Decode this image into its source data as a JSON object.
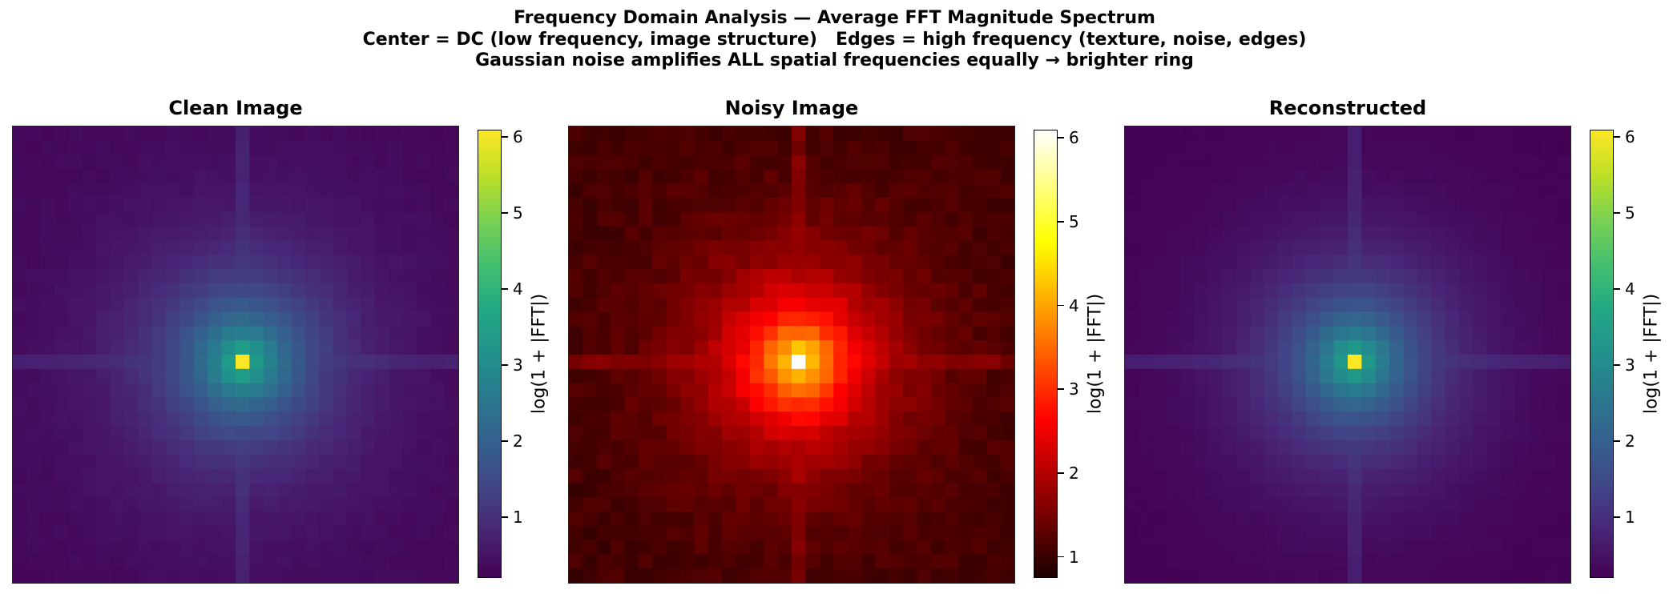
{
  "title_lines": [
    "Frequency Domain Analysis — Average FFT Magnitude Spectrum",
    "Center = DC (low frequency, image structure)   Edges = high frequency (texture, noise, edges)",
    "Gaussian noise amplifies ALL spatial frequencies equally → brighter ring"
  ],
  "chart_data": [
    {
      "type": "heatmap",
      "title": "Clean Image",
      "grid_size": 32,
      "center_index": 16,
      "colormap": "viridis",
      "value_range": [
        0.2,
        6.1
      ],
      "dc_value": 6.1,
      "near_dc_value": 3.4,
      "edge_value": 0.3,
      "axis_line_value": 1.25,
      "noise": 0.04,
      "colorbar": {
        "label": "log(1 + |FFT|)",
        "ticks": [
          1,
          2,
          3,
          4,
          5,
          6
        ]
      }
    },
    {
      "type": "heatmap",
      "title": "Noisy Image",
      "grid_size": 32,
      "center_index": 16,
      "colormap": "hot",
      "value_range": [
        0.75,
        6.1
      ],
      "dc_value": 6.1,
      "near_dc_value": 4.2,
      "edge_value": 1.05,
      "axis_line_value": 2.05,
      "noise": 0.12,
      "colorbar": {
        "label": "log(1 + |FFT|)",
        "ticks": [
          1,
          2,
          3,
          4,
          5,
          6
        ]
      }
    },
    {
      "type": "heatmap",
      "title": "Reconstructed",
      "grid_size": 32,
      "center_index": 16,
      "colormap": "viridis",
      "value_range": [
        0.2,
        6.1
      ],
      "dc_value": 6.1,
      "near_dc_value": 3.3,
      "edge_value": 0.2,
      "axis_line_value": 1.25,
      "noise": 0.02,
      "colorbar": {
        "label": "log(1 + |FFT|)",
        "ticks": [
          1,
          2,
          3,
          4,
          5,
          6
        ]
      }
    }
  ]
}
